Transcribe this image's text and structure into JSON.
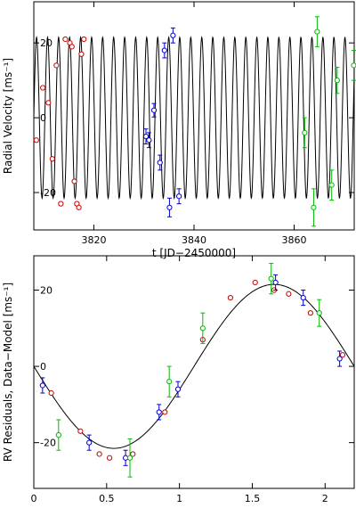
{
  "chart_data": [
    {
      "type": "scatter",
      "xlabel": "t [JD−2450000]",
      "ylabel": "Radial Velocity [ms⁻¹]",
      "xlim": [
        3808,
        3872
      ],
      "ylim": [
        -30,
        31
      ],
      "xticks": [
        3820,
        3840,
        3860
      ],
      "yticks": [
        -20,
        0,
        20
      ],
      "model": {
        "period_days": 2.2,
        "amplitude": 21.5,
        "phase_zero_time": 3808.0,
        "samples_per_cycle": 40
      },
      "series": [
        {
          "color": "#cc0000",
          "marker": "circle",
          "x": [
            3808.5,
            3809.8,
            3810.9,
            3811.7,
            3812.5,
            3813.4,
            3814.3,
            3815.2,
            3815.6,
            3816.1,
            3816.6,
            3817.0,
            3817.5,
            3818.0
          ],
          "y": [
            -6,
            8,
            4,
            -11,
            14,
            -23,
            21,
            20,
            19,
            -17,
            -23,
            -24,
            17,
            21
          ],
          "err": [
            0.8,
            0.8,
            0.8,
            0.8,
            0.8,
            0.8,
            0.8,
            0.8,
            0.8,
            0.8,
            0.8,
            0.8,
            0.8,
            0.8
          ]
        },
        {
          "color": "#0000cc",
          "marker": "circle",
          "x": [
            3830.4,
            3831.0,
            3832.0,
            3833.2,
            3834.1,
            3835.1,
            3835.8,
            3837.0
          ],
          "y": [
            -5,
            -6,
            2,
            -12,
            18,
            -24,
            22,
            -21
          ],
          "err": [
            2,
            2,
            1.8,
            2,
            2,
            2.5,
            2,
            2
          ]
        },
        {
          "color": "#00bb00",
          "marker": "circle",
          "x": [
            3862.1,
            3863.9,
            3864.6,
            3867.5,
            3868.6,
            3871.9
          ],
          "y": [
            -4,
            -24,
            23,
            -18,
            10,
            14
          ],
          "err": [
            4,
            5,
            4,
            4,
            3.5,
            4
          ]
        }
      ]
    },
    {
      "type": "scatter",
      "xlabel": "Orbital phase, signal 1 [days]",
      "ylabel": "RV Residuals, Data−Model [ms⁻¹]",
      "xlim": [
        0,
        2.2
      ],
      "ylim": [
        -32,
        29
      ],
      "xticks": [
        0,
        0.5,
        1,
        1.5,
        2
      ],
      "yticks": [
        -20,
        0,
        20
      ],
      "model": {
        "period_days": 2.2,
        "amplitude": 21.5
      },
      "series": [
        {
          "color": "#cc0000",
          "marker": "circle",
          "x": [
            0.12,
            0.32,
            0.45,
            0.52,
            0.68,
            0.9,
            1.16,
            1.35,
            1.52,
            1.65,
            1.75,
            1.9,
            2.12
          ],
          "y": [
            -7,
            -17,
            -23,
            -24,
            -23,
            -12,
            7,
            18,
            22,
            20,
            19,
            14,
            3
          ],
          "err": [
            0.8,
            0.8,
            0.8,
            0.8,
            0.8,
            0.8,
            0.8,
            0.8,
            0.8,
            0.8,
            0.8,
            0.8,
            0.8
          ]
        },
        {
          "color": "#0000cc",
          "marker": "circle",
          "x": [
            0.06,
            0.38,
            0.63,
            0.86,
            0.99,
            1.66,
            1.85,
            2.1
          ],
          "y": [
            -5,
            -20,
            -24,
            -12,
            -6,
            22,
            18,
            2
          ],
          "err": [
            2,
            2,
            2,
            2,
            2,
            2,
            2,
            2
          ]
        },
        {
          "color": "#00bb00",
          "marker": "circle",
          "x": [
            0.17,
            0.66,
            0.93,
            1.16,
            1.63,
            1.96
          ],
          "y": [
            -18,
            -24,
            -4,
            10,
            23,
            14
          ],
          "err": [
            4,
            5,
            4,
            4,
            4,
            3.5
          ]
        }
      ]
    }
  ]
}
